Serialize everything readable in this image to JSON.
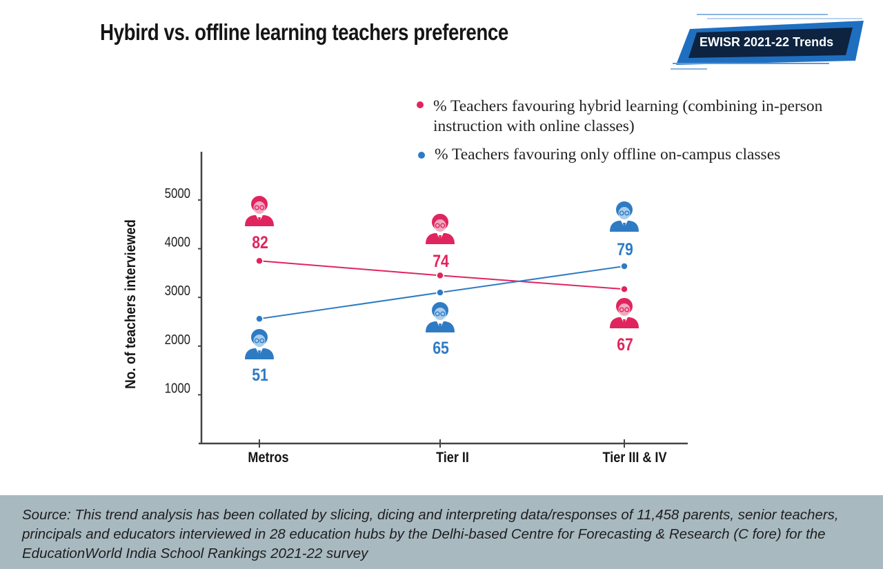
{
  "title": "Hybird vs. offline learning teachers preference",
  "badge": {
    "label": "EWISR 2021-22 Trends"
  },
  "legend": [
    {
      "label": "% Teachers favouring hybrid learning (combining in-person instruction with online classes)",
      "color": "#e0245e"
    },
    {
      "label": "% Teachers favouring only offline on-campus classes",
      "color": "#2e7bc4"
    }
  ],
  "footer": {
    "text": "Source: This trend analysis has been collated by slicing, dicing and interpreting data/responses of 11,458 parents, senior teachers, principals and educators interviewed in 28 education hubs by the Delhi-based Centre for Forecasting & Research (C fore) for the EducationWorld India School Rankings 2021-22 survey"
  },
  "chart_data": {
    "type": "line",
    "ylabel": "No. of teachers interviewed",
    "yticks": [
      "5000",
      "4000",
      "3000",
      "2000",
      "1000"
    ],
    "ylim": [
      0,
      5500
    ],
    "categories": [
      "Metros",
      "Tier II",
      "Tier III & IV"
    ],
    "series": [
      {
        "name": "% Teachers favouring hybrid learning (combining in-person instruction with online classes)",
        "color": "#e0245e",
        "values": [
          3750,
          3450,
          3170
        ],
        "percent_labels": [
          "82",
          "74",
          "67"
        ],
        "label_position": [
          "above",
          "above",
          "below"
        ]
      },
      {
        "name": "% Teachers favouring only offline on-campus classes",
        "color": "#2e7bc4",
        "values": [
          2560,
          3100,
          3640
        ],
        "percent_labels": [
          "51",
          "65",
          "79"
        ],
        "label_position": [
          "below",
          "below",
          "above"
        ]
      }
    ],
    "icon": "teacher-avatar-icon",
    "grid": false
  }
}
